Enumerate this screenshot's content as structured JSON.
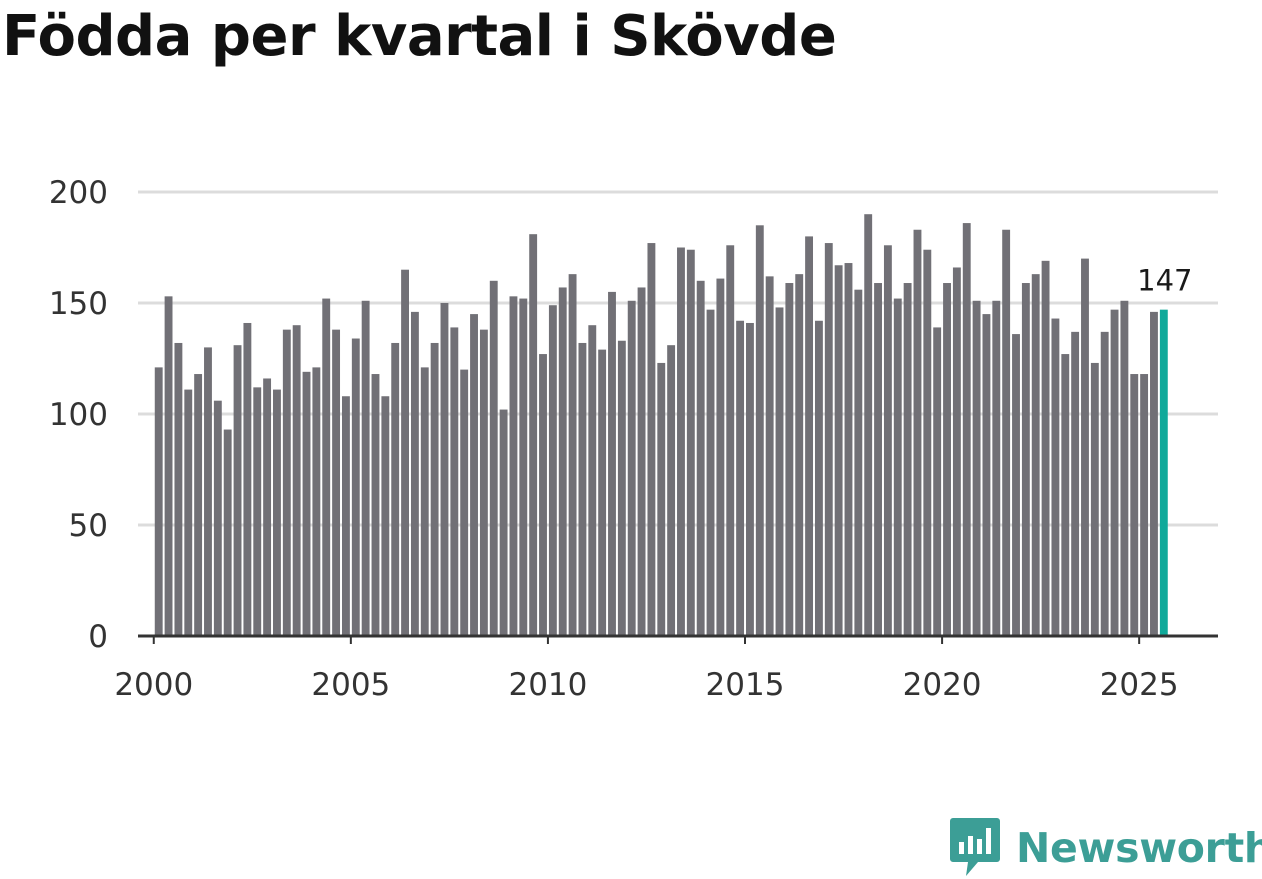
{
  "chart_data": {
    "type": "bar",
    "title": "Födda per kvartal i Skövde",
    "xlabel": "",
    "ylabel": "",
    "ylim": [
      0,
      200
    ],
    "yticks": [
      0,
      50,
      100,
      150,
      200
    ],
    "xticks": [
      2000,
      2005,
      2010,
      2015,
      2020,
      2025
    ],
    "x_range": [
      1999.6,
      2027.0
    ],
    "start_year": 2000,
    "quarters_per_year": 4,
    "values": [
      121,
      153,
      132,
      111,
      118,
      130,
      106,
      93,
      131,
      141,
      112,
      116,
      111,
      138,
      140,
      119,
      121,
      152,
      138,
      108,
      134,
      151,
      118,
      108,
      132,
      165,
      146,
      121,
      132,
      150,
      139,
      120,
      145,
      138,
      160,
      102,
      153,
      152,
      181,
      127,
      149,
      157,
      163,
      132,
      140,
      129,
      155,
      133,
      151,
      157,
      177,
      123,
      131,
      175,
      174,
      160,
      147,
      161,
      176,
      142,
      141,
      185,
      162,
      148,
      159,
      163,
      180,
      142,
      177,
      167,
      168,
      156,
      190,
      159,
      176,
      152,
      159,
      183,
      174,
      139,
      159,
      166,
      186,
      151,
      145,
      151,
      183,
      136,
      159,
      163,
      169,
      143,
      127,
      137,
      170,
      123,
      137,
      147,
      151,
      118,
      118,
      146,
      147
    ],
    "highlight_last": true,
    "last_label": "147",
    "colors": {
      "bar": "#717076",
      "highlight": "#10a99a",
      "grid": "#dcdcdc",
      "axis": "#333333"
    }
  },
  "brand": {
    "name": "Newsworthy",
    "icon": "newsworthy-logo-icon",
    "color": "#3c9e96"
  }
}
